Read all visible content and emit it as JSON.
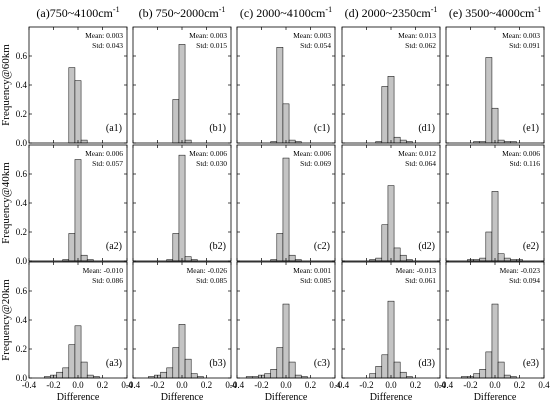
{
  "colors": {
    "bar_fill": "#c4c4c4",
    "bar_stroke": "#000000",
    "background": "#ffffff"
  },
  "chart_data": {
    "type": "bar",
    "layout": "3x5 grid of histograms",
    "bin_centers": [
      -0.35,
      -0.3,
      -0.25,
      -0.2,
      -0.15,
      -0.1,
      -0.05,
      0.0,
      0.05,
      0.1,
      0.15,
      0.2,
      0.25,
      0.3,
      0.35
    ],
    "bin_width": 0.05,
    "xlim": [
      -0.4,
      0.4
    ],
    "ylim": [
      0,
      0.8
    ],
    "xticks": [
      "-0.4",
      "-0.2",
      "0.0",
      "0.2",
      "0.4"
    ],
    "yticks": [
      "0.0",
      "0.2",
      "0.4",
      "0.6"
    ],
    "xlabel": "Difference",
    "columns": [
      "(a)750~4100cm",
      "(b) 750~2000cm",
      "(c) 2000~4100cm",
      "(d) 2000~2350cm",
      "(e) 3500~4000cm"
    ],
    "column_superscript": "-1",
    "rows": [
      "Frequency@60km",
      "Frequency@40km",
      "Frequency@20km"
    ],
    "panels": [
      [
        {
          "label": "(a1)",
          "mean": "Mean: 0.003",
          "std": "Std: 0.043",
          "values": [
            0,
            0,
            0,
            0,
            0,
            0,
            0.52,
            0.43,
            0.02,
            0,
            0,
            0,
            0,
            0,
            0
          ]
        },
        {
          "label": "(b1)",
          "mean": "Mean: 0.003",
          "std": "Std: 0.015",
          "values": [
            0,
            0,
            0,
            0,
            0,
            0,
            0.3,
            0.68,
            0.02,
            0,
            0,
            0,
            0,
            0,
            0
          ]
        },
        {
          "label": "(c1)",
          "mean": "Mean: 0.003",
          "std": "Std: 0.054",
          "values": [
            0,
            0,
            0,
            0,
            0,
            0.01,
            0.66,
            0.27,
            0.02,
            0.01,
            0,
            0,
            0,
            0,
            0
          ]
        },
        {
          "label": "(d1)",
          "mean": "Mean: 0.013",
          "std": "Std: 0.062",
          "values": [
            0,
            0,
            0,
            0,
            0,
            0.01,
            0.39,
            0.46,
            0.04,
            0.02,
            0.01,
            0,
            0,
            0,
            0
          ]
        },
        {
          "label": "(e1)",
          "mean": "Mean: 0.003",
          "std": "Std: 0.091",
          "values": [
            0,
            0,
            0,
            0,
            0.01,
            0.01,
            0.59,
            0.24,
            0.02,
            0.01,
            0.01,
            0,
            0,
            0,
            0
          ]
        }
      ],
      [
        {
          "label": "(a2)",
          "mean": "Mean: 0.006",
          "std": "Std: 0.057",
          "values": [
            0,
            0,
            0,
            0,
            0,
            0.01,
            0.19,
            0.7,
            0.04,
            0.01,
            0,
            0,
            0,
            0,
            0
          ]
        },
        {
          "label": "(b2)",
          "mean": "Mean: 0.006",
          "std": "Std: 0.030",
          "values": [
            0,
            0,
            0,
            0,
            0,
            0.01,
            0.19,
            0.73,
            0.03,
            0.01,
            0,
            0,
            0,
            0,
            0
          ]
        },
        {
          "label": "(c2)",
          "mean": "Mean: 0.006",
          "std": "Std: 0.069",
          "values": [
            0,
            0,
            0,
            0,
            0,
            0.01,
            0.19,
            0.71,
            0.04,
            0.01,
            0,
            0,
            0,
            0,
            0
          ]
        },
        {
          "label": "(d2)",
          "mean": "Mean: 0.012",
          "std": "Std: 0.064",
          "values": [
            0,
            0,
            0,
            0,
            0.01,
            0.02,
            0.25,
            0.52,
            0.09,
            0.04,
            0.01,
            0,
            0,
            0,
            0
          ]
        },
        {
          "label": "(e2)",
          "mean": "Mean: 0.006",
          "std": "Std: 0.116",
          "values": [
            0,
            0,
            0,
            0.01,
            0.01,
            0.02,
            0.2,
            0.48,
            0.05,
            0.02,
            0.01,
            0.01,
            0,
            0,
            0
          ]
        }
      ],
      [
        {
          "label": "(a3)",
          "mean": "Mean: -0.010",
          "std": "Std: 0.086",
          "values": [
            0,
            0,
            0.01,
            0.02,
            0.04,
            0.07,
            0.23,
            0.36,
            0.11,
            0.02,
            0.01,
            0,
            0,
            0,
            0
          ]
        },
        {
          "label": "(b3)",
          "mean": "Mean: -0.026",
          "std": "Std: 0.085",
          "values": [
            0,
            0,
            0.01,
            0.02,
            0.04,
            0.07,
            0.21,
            0.37,
            0.13,
            0.03,
            0.01,
            0,
            0,
            0,
            0
          ]
        },
        {
          "label": "(c3)",
          "mean": "Mean: 0.001",
          "std": "Std: 0.085",
          "values": [
            0,
            0.01,
            0.01,
            0.02,
            0.03,
            0.06,
            0.21,
            0.51,
            0.11,
            0.02,
            0.01,
            0,
            0,
            0,
            0
          ]
        },
        {
          "label": "(d3)",
          "mean": "Mean: -0.013",
          "std": "Std: 0.061",
          "values": [
            0,
            0,
            0,
            0,
            0.03,
            0.08,
            0.16,
            0.53,
            0.11,
            0.04,
            0.01,
            0,
            0,
            0,
            0
          ]
        },
        {
          "label": "(e3)",
          "mean": "Mean: -0.023",
          "std": "Std: 0.094",
          "values": [
            0,
            0,
            0.01,
            0.01,
            0.03,
            0.06,
            0.18,
            0.51,
            0.11,
            0.02,
            0.01,
            0,
            0,
            0,
            0
          ]
        }
      ]
    ]
  }
}
